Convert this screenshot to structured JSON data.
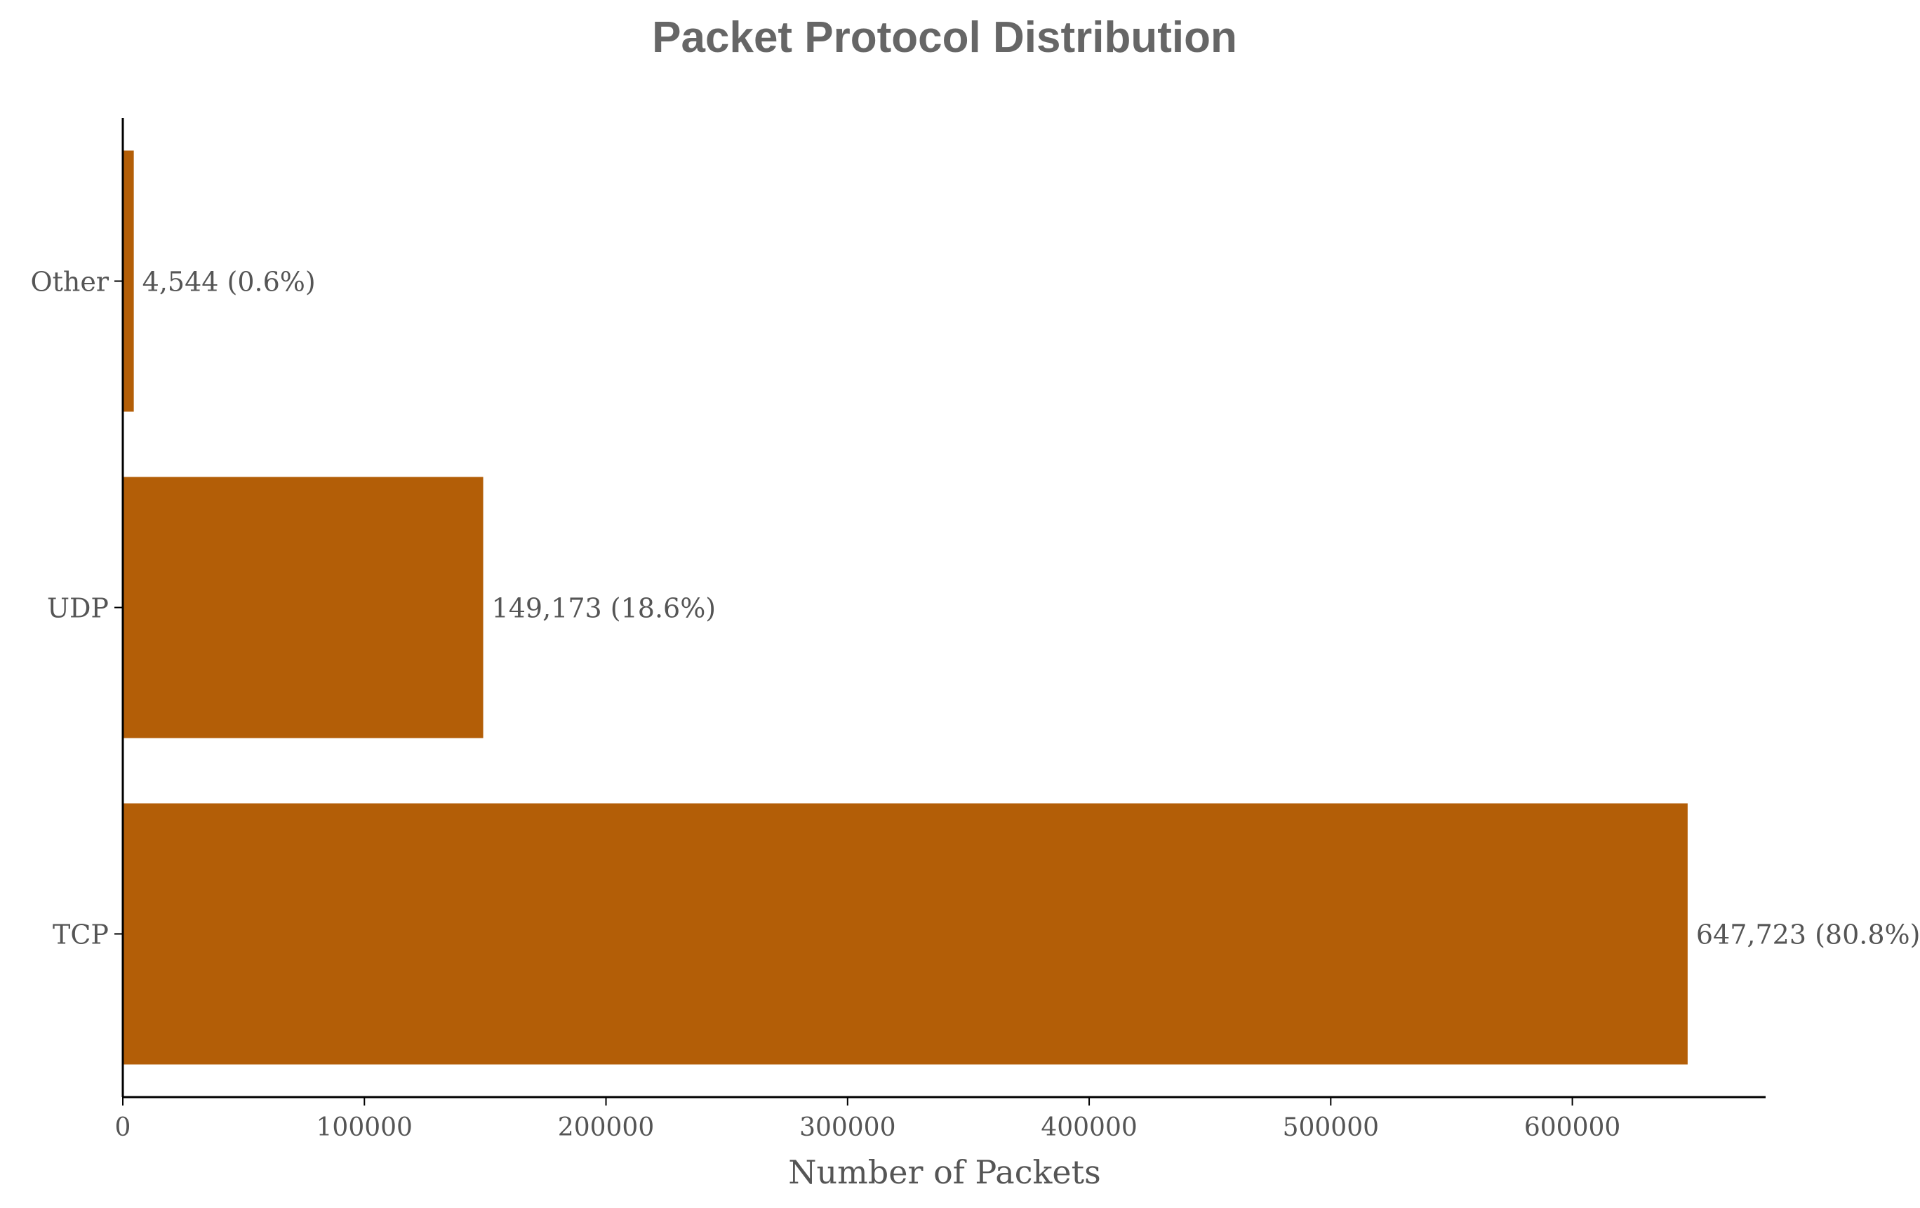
{
  "chart_data": {
    "type": "bar",
    "orientation": "horizontal",
    "title": "Packet Protocol Distribution",
    "xlabel": "Number of Packets",
    "ylabel": "",
    "categories": [
      "TCP",
      "UDP",
      "Other"
    ],
    "values": [
      647723,
      149173,
      4544
    ],
    "data_labels": [
      "647,723 (80.8%)",
      "149,173 (18.6%)",
      "4,544 (0.6%)"
    ],
    "xlim": [
      0,
      680000
    ],
    "xticks": [
      0,
      100000,
      200000,
      300000,
      400000,
      500000,
      600000
    ],
    "xtick_labels": [
      "0",
      "100000",
      "200000",
      "300000",
      "400000",
      "500000",
      "600000"
    ],
    "grid": false,
    "colors": {
      "bar": "#b35e07",
      "axis": "#000000",
      "text": "#555555",
      "title": "#666666"
    }
  }
}
